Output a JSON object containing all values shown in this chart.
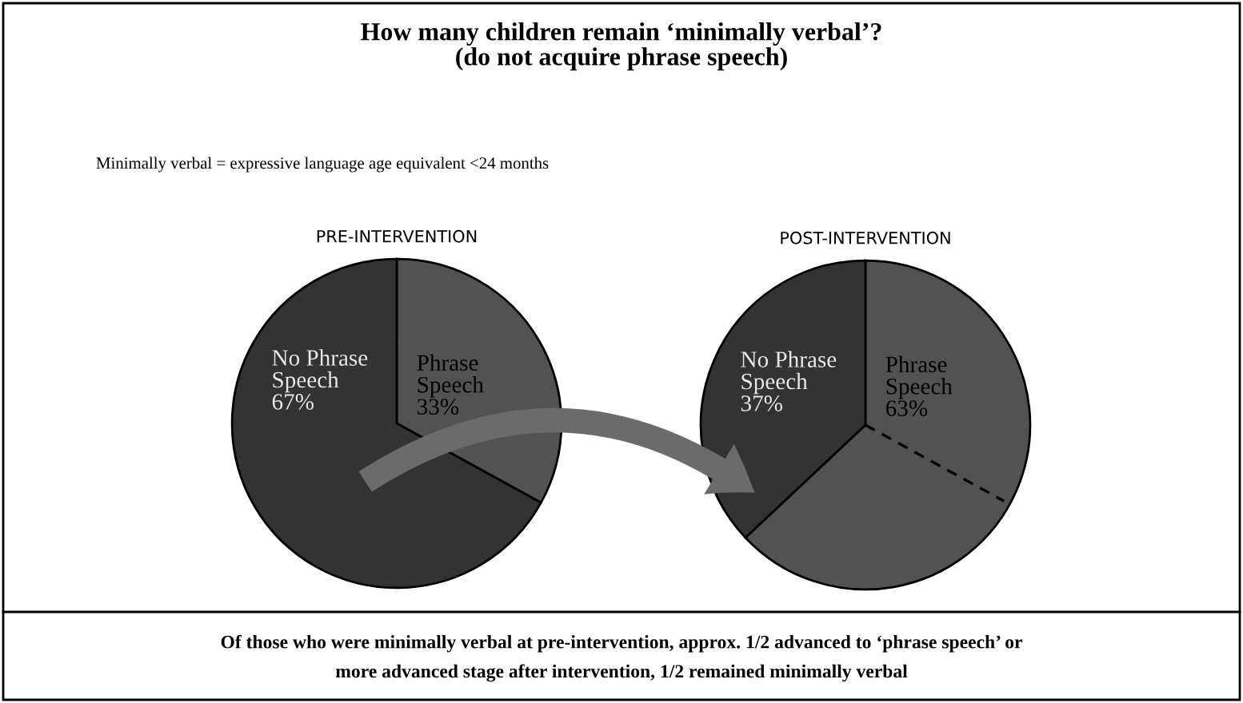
{
  "chart_data": [
    {
      "type": "pie",
      "title": "PRE-INTERVENTION",
      "categories": [
        "Phrase\nSpeech",
        "No Phrase\nSpeech"
      ],
      "values": [
        33,
        67
      ],
      "value_labels": [
        "33%",
        "67%"
      ],
      "colors": [
        "#525252",
        "#333333"
      ],
      "annotations": [
        "How many children remain ‘minimally verbal’?\n(do not acquire phrase speech)",
        "Minimally verbal = expressive language age equivalent <24 months",
        "Of those who were minimally verbal at pre-intervention, approx. 1/2 advanced to ‘phrase speech’ or\nmore advanced stage after intervention, 1/2 remained minimally verbal"
      ]
    },
    {
      "type": "pie",
      "title": "POST-INTERVENTION",
      "categories": [
        "Phrase\nSpeech",
        "No Phrase\nSpeech"
      ],
      "values": [
        63,
        37
      ],
      "value_labels": [
        "63%",
        "37%"
      ],
      "colors": [
        "#525252",
        "#333333"
      ],
      "needle": "Phrase\nSpeech"
    }
  ]
}
